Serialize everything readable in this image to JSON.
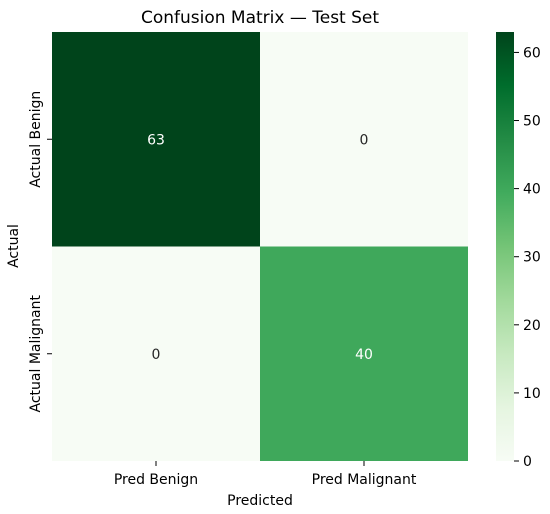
{
  "chart_data": {
    "type": "heatmap",
    "title": "Confusion Matrix — Test Set",
    "xlabel": "Predicted",
    "ylabel": "Actual",
    "x_categories": [
      "Pred Benign",
      "Pred Malignant"
    ],
    "y_categories": [
      "Actual Benign",
      "Actual Malignant"
    ],
    "values": [
      [
        63,
        0
      ],
      [
        0,
        40
      ]
    ],
    "cell_labels": [
      [
        "63",
        "0"
      ],
      [
        "0",
        "40"
      ]
    ],
    "colormap": "Greens",
    "colorbar": {
      "min": 0,
      "max": 63,
      "ticks": [
        0,
        10,
        20,
        30,
        40,
        50,
        60
      ],
      "tick_labels": [
        "0",
        "10",
        "20",
        "30",
        "40",
        "50",
        "60"
      ]
    },
    "grid": false,
    "legend": "colorbar-right"
  }
}
